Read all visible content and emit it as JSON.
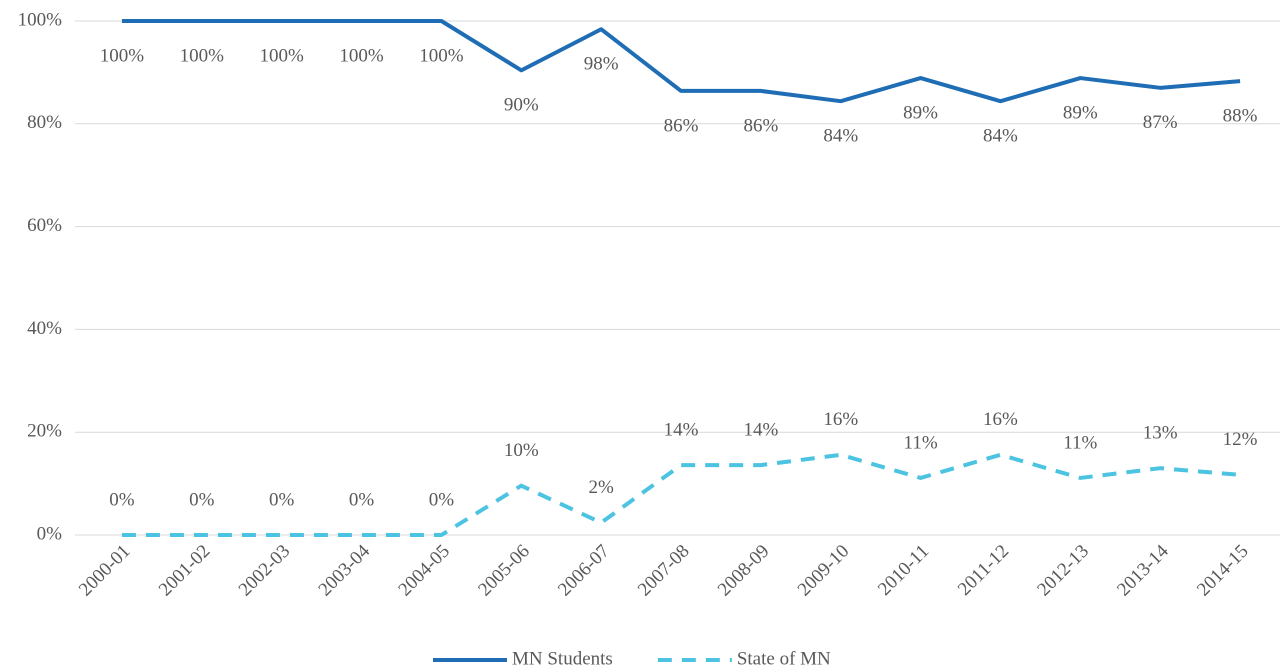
{
  "chart_data": {
    "type": "line",
    "categories": [
      "2000-01",
      "2001-02",
      "2002-03",
      "2003-04",
      "2004-05",
      "2005-06",
      "2006-07",
      "2007-08",
      "2008-09",
      "2009-10",
      "2010-11",
      "2011-12",
      "2012-13",
      "2013-14",
      "2014-15"
    ],
    "series": [
      {
        "name": "MN Students",
        "color": "#1f6db4",
        "dash": false,
        "values": [
          100,
          100,
          100,
          100,
          100,
          90.4,
          98.4,
          86.4,
          86.4,
          84.4,
          88.9,
          84.4,
          88.9,
          87,
          88.3
        ],
        "value_labels": [
          "100%",
          "100%",
          "100%",
          "100%",
          "100%",
          "90%",
          "98%",
          "86%",
          "86%",
          "84%",
          "89%",
          "84%",
          "89%",
          "87%",
          "88%"
        ]
      },
      {
        "name": "State of MN",
        "color": "#4dc3e2",
        "dash": true,
        "values": [
          0,
          0,
          0,
          0,
          0,
          9.6,
          2.4,
          13.6,
          13.6,
          15.6,
          11.1,
          15.6,
          11.1,
          13,
          11.7
        ],
        "value_labels": [
          "0%",
          "0%",
          "0%",
          "0%",
          "0%",
          "10%",
          "2%",
          "14%",
          "14%",
          "16%",
          "11%",
          "16%",
          "11%",
          "13%",
          "12%"
        ]
      }
    ],
    "ylim": [
      0,
      100
    ],
    "yticks": [
      {
        "value": 0,
        "label": "0%"
      },
      {
        "value": 20,
        "label": "20%"
      },
      {
        "value": 40,
        "label": "40%"
      },
      {
        "value": 60,
        "label": "60%"
      },
      {
        "value": 80,
        "label": "80%"
      },
      {
        "value": 100,
        "label": "100%"
      }
    ],
    "grid": true,
    "legend": "bottom"
  }
}
